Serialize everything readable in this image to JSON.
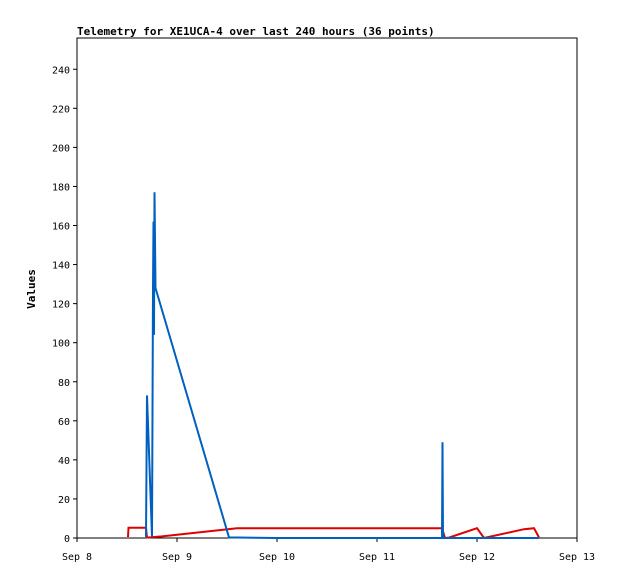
{
  "chart_data": {
    "type": "line",
    "title": "Telemetry for XE1UCA-4 over last 240 hours (36 points)",
    "xlabel": "",
    "ylabel": "Values",
    "x_ticks": [
      "Sep 8",
      "Sep 9",
      "Sep 10",
      "Sep 11",
      "Sep 12",
      "Sep 13"
    ],
    "x_range": [
      0,
      5
    ],
    "y_ticks": [
      "0",
      "20",
      "40",
      "60",
      "80",
      "100",
      "120",
      "140",
      "160",
      "180",
      "200",
      "220",
      "240"
    ],
    "ylim": [
      0,
      256
    ],
    "grid": false,
    "series": [
      {
        "color": "#e00000",
        "x": [
          0.51,
          0.515,
          0.69,
          0.7,
          0.85,
          1.6,
          2.0,
          3.4,
          3.65,
          3.68,
          3.72,
          4.0,
          4.07,
          4.47,
          4.57,
          4.62
        ],
        "y": [
          0.5,
          5.2,
          5.2,
          0.2,
          0.8,
          5.0,
          5.0,
          5.0,
          5.0,
          0.0,
          0.2,
          5.0,
          0.0,
          4.5,
          5.0,
          0.3
        ]
      },
      {
        "color": "#0060c0",
        "x": [
          0.69,
          0.7,
          0.75,
          0.76,
          0.765,
          0.77,
          0.775,
          0.785,
          1.52,
          2.0,
          3.4,
          3.65,
          3.655,
          3.66,
          4.0,
          4.07,
          4.47,
          4.57,
          4.62
        ],
        "y": [
          0.5,
          73,
          0.5,
          128,
          162,
          104,
          177,
          128,
          0.3,
          0.0,
          0.0,
          0.0,
          49,
          0.0,
          0.0,
          0.0,
          0.0,
          0.0,
          0.0
        ]
      }
    ]
  }
}
